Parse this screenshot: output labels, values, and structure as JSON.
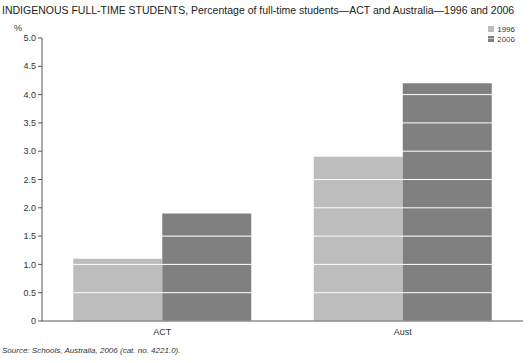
{
  "chart_data": {
    "type": "bar",
    "title": "INDIGENOUS FULL-TIME STUDENTS, Percentage of full-time students—ACT and Australia—1996 and 2006",
    "y_label": "%",
    "source": "Source: Schools, Australia, 2006 (cat. no. 4221.0).",
    "categories": [
      "ACT",
      "Aust"
    ],
    "series": [
      {
        "name": "1996",
        "color": "#bdbdbd",
        "values": [
          1.1,
          2.9
        ]
      },
      {
        "name": "2006",
        "color": "#808080",
        "values": [
          1.9,
          4.2
        ]
      }
    ],
    "ylim": [
      0,
      5
    ],
    "yticks": [
      0,
      0.5,
      {
        "value": 1,
        "label": "1.0"
      },
      1.5,
      {
        "value": 2,
        "label": "2.0"
      },
      2.5,
      {
        "value": 3,
        "label": "3.0"
      },
      3.5,
      {
        "value": 4,
        "label": "4.0"
      },
      4.5,
      {
        "value": 5,
        "label": "5.0"
      }
    ],
    "grid": true,
    "legend": "top-right"
  }
}
